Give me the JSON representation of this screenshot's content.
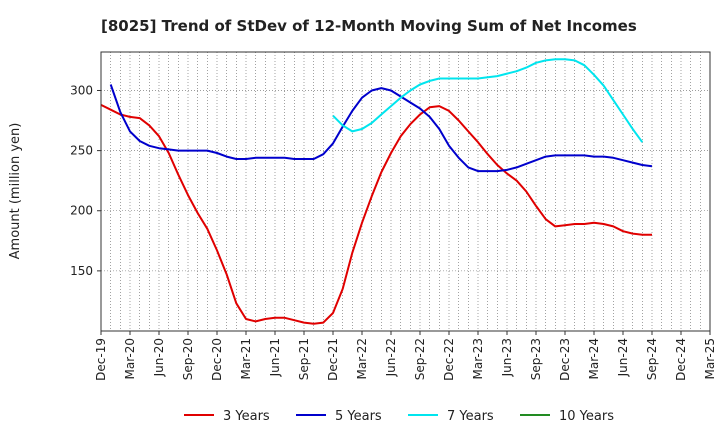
{
  "chart_data": {
    "type": "line",
    "title": "[8025]  Trend of StDev of 12-Month Moving Sum of Net Incomes",
    "xlabel": "",
    "ylabel": "Amount (million yen)",
    "x_ticks": [
      "Dec-19",
      "Mar-20",
      "Jun-20",
      "Sep-20",
      "Dec-20",
      "Mar-21",
      "Jun-21",
      "Sep-21",
      "Dec-21",
      "Mar-22",
      "Jun-22",
      "Sep-22",
      "Dec-22",
      "Mar-23",
      "Jun-23",
      "Sep-23",
      "Dec-23",
      "Mar-24",
      "Jun-24",
      "Sep-24",
      "Dec-24",
      "Mar-25"
    ],
    "y_ticks": [
      150,
      200,
      250,
      300
    ],
    "ylim": [
      100,
      332
    ],
    "grid": true,
    "legend_position": "bottom",
    "series": [
      {
        "name": "3 Years",
        "color": "#e00000",
        "points": [
          [
            0,
            288
          ],
          [
            1,
            284
          ],
          [
            2,
            280
          ],
          [
            3,
            278
          ],
          [
            4,
            277
          ],
          [
            5,
            271
          ],
          [
            6,
            262
          ],
          [
            7,
            248
          ],
          [
            8,
            230
          ],
          [
            9,
            213
          ],
          [
            10,
            198
          ],
          [
            11,
            185
          ],
          [
            12,
            167
          ],
          [
            13,
            147
          ],
          [
            14,
            123
          ],
          [
            15,
            110
          ],
          [
            16,
            108
          ],
          [
            17,
            110
          ],
          [
            18,
            111
          ],
          [
            19,
            111
          ],
          [
            20,
            109
          ],
          [
            21,
            107
          ],
          [
            22,
            106
          ],
          [
            23,
            107
          ],
          [
            24,
            115
          ],
          [
            25,
            135
          ],
          [
            26,
            165
          ],
          [
            27,
            190
          ],
          [
            28,
            212
          ],
          [
            29,
            232
          ],
          [
            30,
            248
          ],
          [
            31,
            262
          ],
          [
            32,
            272
          ],
          [
            33,
            280
          ],
          [
            34,
            286
          ],
          [
            35,
            287
          ],
          [
            36,
            283
          ],
          [
            37,
            275
          ],
          [
            38,
            266
          ],
          [
            39,
            257
          ],
          [
            40,
            247
          ],
          [
            41,
            238
          ],
          [
            42,
            231
          ],
          [
            43,
            225
          ],
          [
            44,
            216
          ],
          [
            45,
            204
          ],
          [
            46,
            193
          ],
          [
            47,
            187
          ],
          [
            48,
            188
          ],
          [
            49,
            189
          ],
          [
            50,
            189
          ],
          [
            51,
            190
          ],
          [
            52,
            189
          ],
          [
            53,
            187
          ],
          [
            54,
            183
          ],
          [
            55,
            181
          ],
          [
            56,
            180
          ],
          [
            57,
            180
          ]
        ]
      },
      {
        "name": "5 Years",
        "color": "#0000cc",
        "points": [
          [
            1,
            305
          ],
          [
            2,
            282
          ],
          [
            3,
            266
          ],
          [
            4,
            258
          ],
          [
            5,
            254
          ],
          [
            6,
            252
          ],
          [
            7,
            251
          ],
          [
            8,
            250
          ],
          [
            9,
            250
          ],
          [
            10,
            250
          ],
          [
            11,
            250
          ],
          [
            12,
            248
          ],
          [
            13,
            245
          ],
          [
            14,
            243
          ],
          [
            15,
            243
          ],
          [
            16,
            244
          ],
          [
            17,
            244
          ],
          [
            18,
            244
          ],
          [
            19,
            244
          ],
          [
            20,
            243
          ],
          [
            21,
            243
          ],
          [
            22,
            243
          ],
          [
            23,
            247
          ],
          [
            24,
            256
          ],
          [
            25,
            270
          ],
          [
            26,
            283
          ],
          [
            27,
            294
          ],
          [
            28,
            300
          ],
          [
            29,
            302
          ],
          [
            30,
            300
          ],
          [
            31,
            295
          ],
          [
            32,
            290
          ],
          [
            33,
            285
          ],
          [
            34,
            278
          ],
          [
            35,
            268
          ],
          [
            36,
            254
          ],
          [
            37,
            244
          ],
          [
            38,
            236
          ],
          [
            39,
            233
          ],
          [
            40,
            233
          ],
          [
            41,
            233
          ],
          [
            42,
            234
          ],
          [
            43,
            236
          ],
          [
            44,
            239
          ],
          [
            45,
            242
          ],
          [
            46,
            245
          ],
          [
            47,
            246
          ],
          [
            48,
            246
          ],
          [
            49,
            246
          ],
          [
            50,
            246
          ],
          [
            51,
            245
          ],
          [
            52,
            245
          ],
          [
            53,
            244
          ],
          [
            54,
            242
          ],
          [
            55,
            240
          ],
          [
            56,
            238
          ],
          [
            57,
            237
          ]
        ]
      },
      {
        "name": "7 Years",
        "color": "#00e5ee",
        "points": [
          [
            24,
            279
          ],
          [
            25,
            271
          ],
          [
            26,
            266
          ],
          [
            27,
            268
          ],
          [
            28,
            273
          ],
          [
            29,
            280
          ],
          [
            30,
            287
          ],
          [
            31,
            294
          ],
          [
            32,
            300
          ],
          [
            33,
            305
          ],
          [
            34,
            308
          ],
          [
            35,
            310
          ],
          [
            36,
            310
          ],
          [
            37,
            310
          ],
          [
            38,
            310
          ],
          [
            39,
            310
          ],
          [
            40,
            311
          ],
          [
            41,
            312
          ],
          [
            42,
            314
          ],
          [
            43,
            316
          ],
          [
            44,
            319
          ],
          [
            45,
            323
          ],
          [
            46,
            325
          ],
          [
            47,
            326
          ],
          [
            48,
            326
          ],
          [
            49,
            325
          ],
          [
            50,
            321
          ],
          [
            51,
            313
          ],
          [
            52,
            304
          ],
          [
            53,
            292
          ],
          [
            54,
            280
          ],
          [
            55,
            268
          ],
          [
            56,
            257
          ]
        ]
      },
      {
        "name": "10 Years",
        "color": "#228b22",
        "points": []
      }
    ]
  }
}
